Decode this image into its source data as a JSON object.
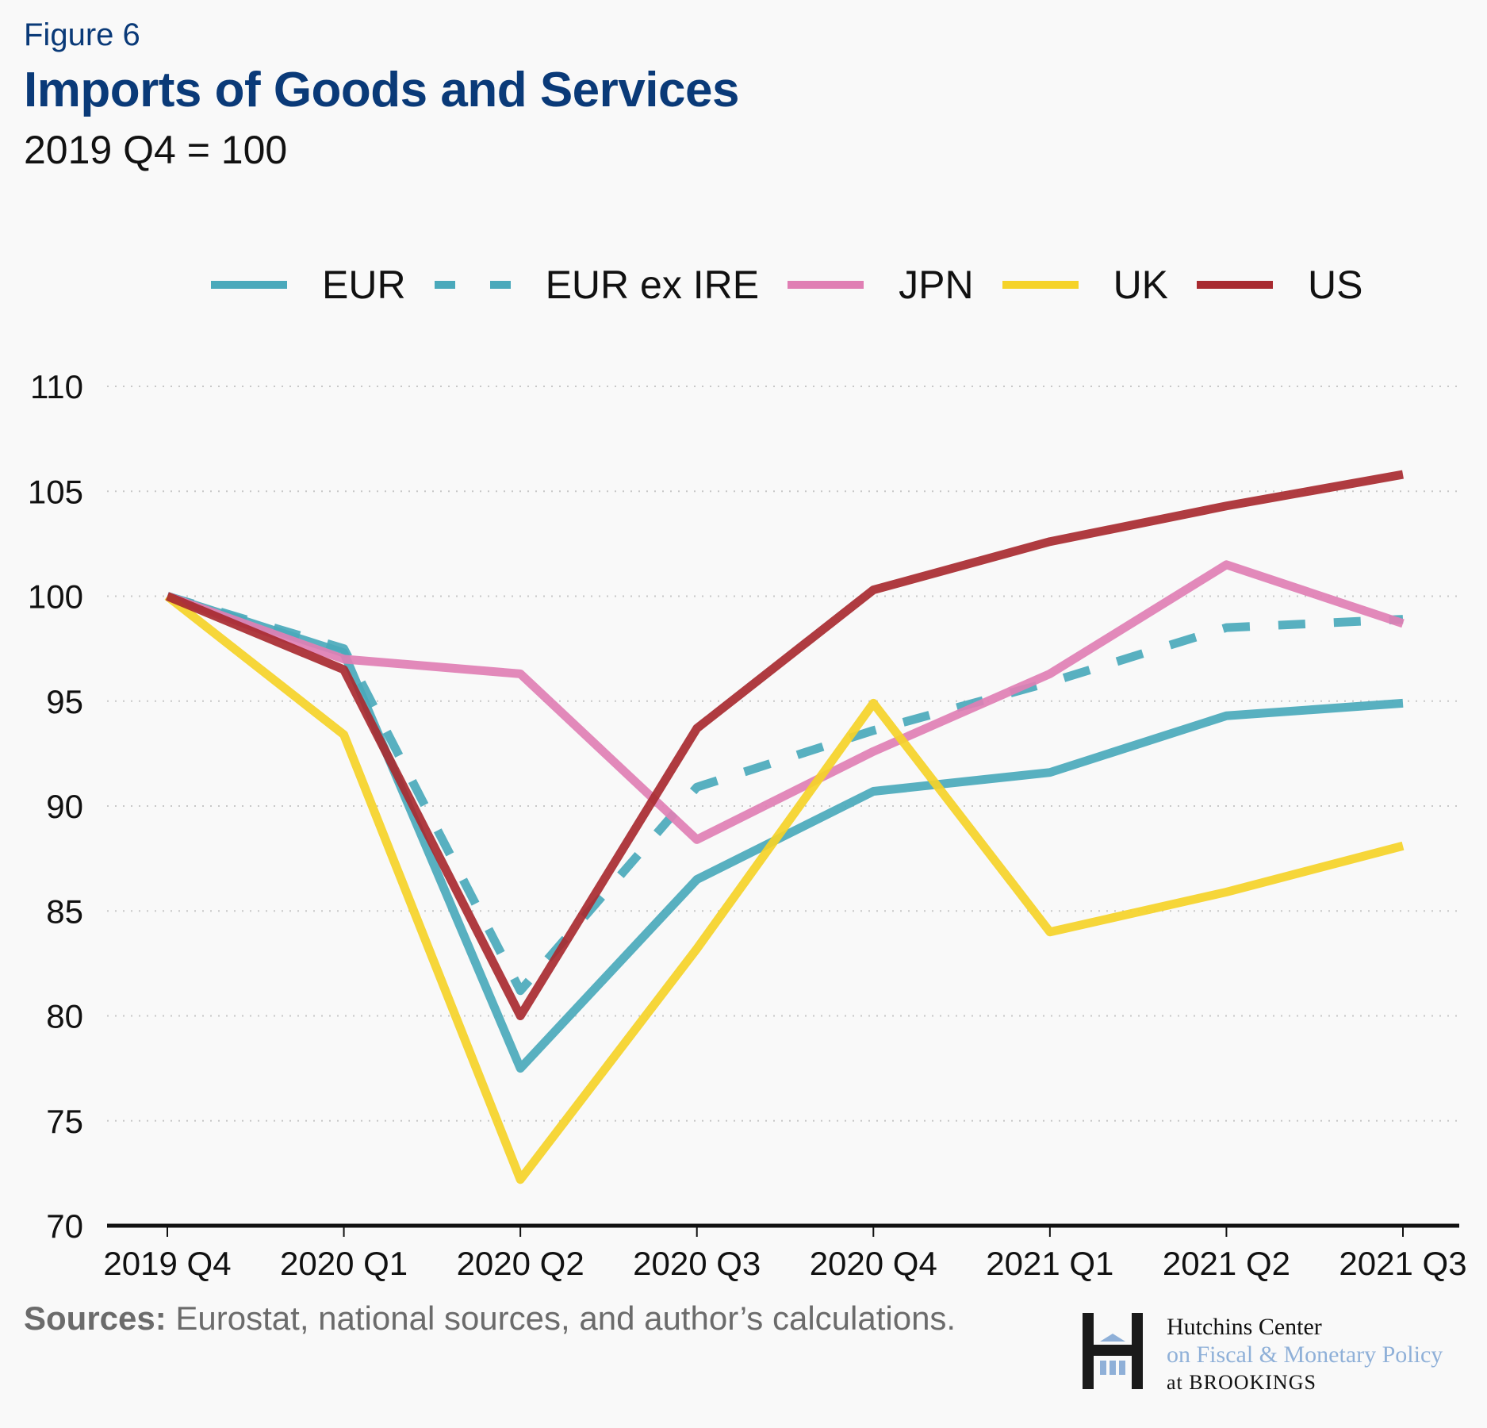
{
  "header": {
    "figure_label": "Figure 6",
    "title": "Imports of Goods and Services",
    "subtitle": "2019 Q4 = 100"
  },
  "footer": {
    "sources_label": "Sources:",
    "sources_text": " Eurostat, national sources, and author’s calculations.",
    "logo": {
      "line1": "Hutchins Center",
      "line2": "on Fiscal & Monetary Policy",
      "line3": "at BROOKINGS"
    }
  },
  "chart_data": {
    "type": "line",
    "title": "Imports of Goods and Services",
    "subtitle": "2019 Q4 = 100",
    "xlabel": "",
    "ylabel": "",
    "categories": [
      "2019 Q4",
      "2020 Q1",
      "2020 Q2",
      "2020 Q3",
      "2020 Q4",
      "2021 Q1",
      "2021 Q2",
      "2021 Q3"
    ],
    "ylim": [
      70,
      110
    ],
    "yticks": [
      70,
      75,
      80,
      85,
      90,
      95,
      100,
      105,
      110
    ],
    "grid": "horizontal-dotted",
    "legend_position": "top",
    "series": [
      {
        "name": "EUR",
        "color": "#4aa9bb",
        "style": "solid",
        "values": [
          100,
          97.3,
          77.5,
          86.5,
          90.7,
          91.6,
          94.3,
          94.9
        ]
      },
      {
        "name": "EUR ex IRE",
        "color": "#4aa9bb",
        "style": "dashed",
        "values": [
          100,
          97.5,
          81.2,
          90.9,
          93.6,
          95.9,
          98.5,
          98.9
        ]
      },
      {
        "name": "JPN",
        "color": "#e07fb4",
        "style": "solid",
        "values": [
          100,
          97.0,
          96.3,
          88.4,
          92.6,
          96.3,
          101.5,
          98.7
        ]
      },
      {
        "name": "UK",
        "color": "#f5d328",
        "style": "solid",
        "values": [
          100,
          93.4,
          72.2,
          83.2,
          94.9,
          84.0,
          85.9,
          88.1
        ]
      },
      {
        "name": "US",
        "color": "#a82a30",
        "style": "solid",
        "values": [
          100,
          96.5,
          80.0,
          93.7,
          100.3,
          102.6,
          104.3,
          105.8
        ]
      }
    ]
  }
}
